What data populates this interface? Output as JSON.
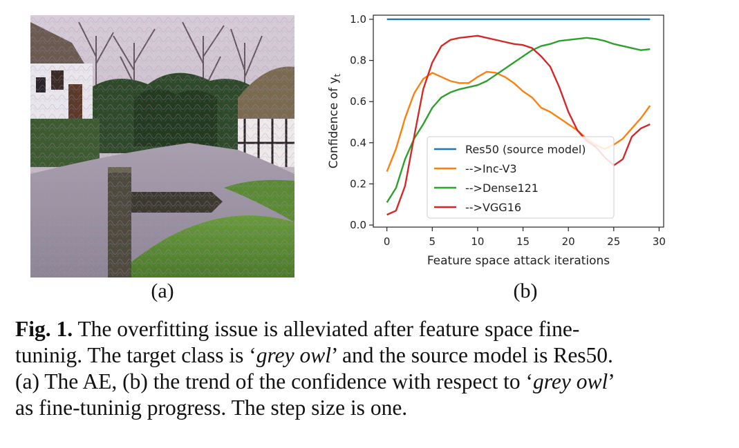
{
  "figure": {
    "panel_a_label": "(a)",
    "panel_b_label": "(b)",
    "caption": {
      "fig_label": "Fig. 1.",
      "line1_text": "The overfitting issue is alleviated after feature space fine-",
      "line2_pre": "tuninig. The target class is ‘",
      "line2_class": "grey owl",
      "line2_post": "’ and the source model is Res50.",
      "line3_pre": "(a) The AE, (b) the trend of the confidence with respect to ‘",
      "line3_class": "grey owl",
      "line3_post": "’",
      "line4_text": "as fine-tuninig progress. The step size is one."
    }
  },
  "chart_data": {
    "type": "line",
    "title": "",
    "xlabel": "Feature space attack iterations",
    "ylabel_base": "Confidence of y",
    "ylabel_sub": "t",
    "xlim": [
      -1.5,
      30.5
    ],
    "ylim": [
      -0.01,
      1.02
    ],
    "xticks": [
      0,
      5,
      10,
      15,
      20,
      25,
      30
    ],
    "yticks": [
      0.0,
      0.2,
      0.4,
      0.6,
      0.8,
      1.0
    ],
    "ytick_labels": [
      "0.0",
      "0.2",
      "0.4",
      "0.6",
      "0.8",
      "1.0"
    ],
    "grid": false,
    "legend_position": "center-right",
    "x": [
      0,
      1,
      2,
      3,
      4,
      5,
      6,
      7,
      8,
      9,
      10,
      11,
      12,
      13,
      14,
      15,
      16,
      17,
      18,
      19,
      20,
      21,
      22,
      23,
      24,
      25,
      26,
      27,
      28,
      29
    ],
    "series": [
      {
        "name": "Res50 (source model)",
        "color": "#1f77b4",
        "values": [
          1.0,
          1.0,
          1.0,
          1.0,
          1.0,
          1.0,
          1.0,
          1.0,
          1.0,
          1.0,
          1.0,
          1.0,
          1.0,
          1.0,
          1.0,
          1.0,
          1.0,
          1.0,
          1.0,
          1.0,
          1.0,
          1.0,
          1.0,
          1.0,
          1.0,
          1.0,
          1.0,
          1.0,
          1.0,
          1.0
        ]
      },
      {
        "name": "-->Inc-V3",
        "color": "#ff7f0e",
        "values": [
          0.26,
          0.37,
          0.52,
          0.64,
          0.71,
          0.74,
          0.72,
          0.7,
          0.69,
          0.69,
          0.72,
          0.745,
          0.74,
          0.72,
          0.69,
          0.65,
          0.62,
          0.57,
          0.55,
          0.52,
          0.49,
          0.46,
          0.42,
          0.39,
          0.37,
          0.39,
          0.42,
          0.47,
          0.52,
          0.58
        ]
      },
      {
        "name": "-->Dense121",
        "color": "#2ca02c",
        "values": [
          0.11,
          0.18,
          0.32,
          0.42,
          0.49,
          0.57,
          0.62,
          0.645,
          0.66,
          0.67,
          0.68,
          0.7,
          0.73,
          0.76,
          0.79,
          0.82,
          0.85,
          0.87,
          0.88,
          0.895,
          0.9,
          0.905,
          0.91,
          0.905,
          0.895,
          0.88,
          0.87,
          0.86,
          0.85,
          0.855
        ]
      },
      {
        "name": "-->VGG16",
        "color": "#d62728",
        "values": [
          0.05,
          0.07,
          0.19,
          0.43,
          0.66,
          0.79,
          0.87,
          0.9,
          0.91,
          0.915,
          0.92,
          0.91,
          0.9,
          0.89,
          0.88,
          0.875,
          0.86,
          0.82,
          0.77,
          0.67,
          0.55,
          0.46,
          0.41,
          0.38,
          0.33,
          0.29,
          0.32,
          0.43,
          0.47,
          0.49
        ]
      }
    ]
  }
}
